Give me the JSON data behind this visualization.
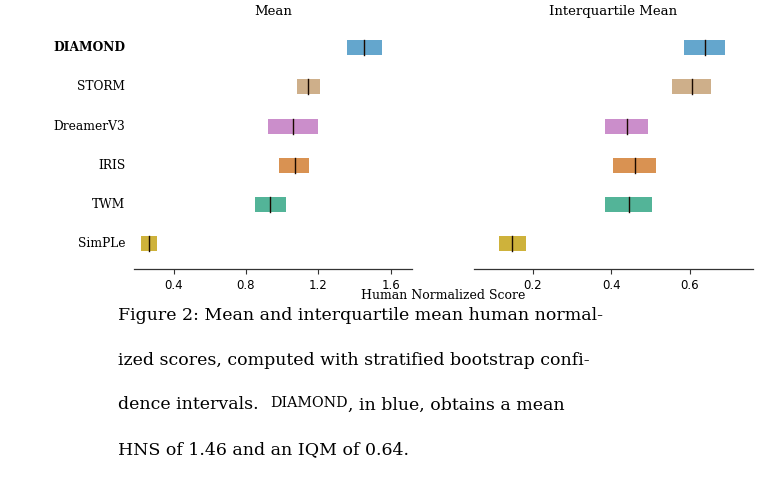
{
  "title_left": "Mean",
  "title_right": "Interquartile Mean",
  "xlabel": "Human Normalized Score",
  "methods": [
    "DIAMOND",
    "STORM",
    "DreamerV3",
    "IRIS",
    "TWM",
    "SimPLe"
  ],
  "bold_method": "DIAMOND",
  "colors": {
    "DIAMOND": "#4e9ac7",
    "STORM": "#c8a47a",
    "DreamerV3": "#c47fc4",
    "IRIS": "#d4833a",
    "TWM": "#3baa8a",
    "SimPLe": "#c8a820"
  },
  "mean": {
    "DIAMOND": {
      "lo": 1.36,
      "median": 1.455,
      "hi": 1.55
    },
    "STORM": {
      "lo": 1.08,
      "median": 1.145,
      "hi": 1.21
    },
    "DreamerV3": {
      "lo": 0.92,
      "median": 1.06,
      "hi": 1.2
    },
    "IRIS": {
      "lo": 0.98,
      "median": 1.07,
      "hi": 1.15
    },
    "TWM": {
      "lo": 0.85,
      "median": 0.935,
      "hi": 1.02
    },
    "SimPLe": {
      "lo": 0.22,
      "median": 0.265,
      "hi": 0.31
    }
  },
  "iqm": {
    "DIAMOND": {
      "lo": 0.585,
      "median": 0.638,
      "hi": 0.69
    },
    "STORM": {
      "lo": 0.555,
      "median": 0.605,
      "hi": 0.655
    },
    "DreamerV3": {
      "lo": 0.385,
      "median": 0.44,
      "hi": 0.495
    },
    "IRIS": {
      "lo": 0.405,
      "median": 0.46,
      "hi": 0.515
    },
    "TWM": {
      "lo": 0.385,
      "median": 0.445,
      "hi": 0.505
    },
    "SimPLe": {
      "lo": 0.115,
      "median": 0.148,
      "hi": 0.182
    }
  },
  "mean_xlim": [
    0.18,
    1.72
  ],
  "iqm_xlim": [
    0.05,
    0.76
  ],
  "mean_xticks": [
    0.4,
    0.8,
    1.2,
    1.6
  ],
  "iqm_xticks": [
    0.2,
    0.4,
    0.6
  ],
  "bar_height": 0.38,
  "background_color": "#ffffff",
  "caption_prefix": "Figure 2: Mean and interquartile mean human normalized scores, computed with stratified bootstrap confidence intervals. ",
  "caption_diamond": "Diamond",
  "caption_suffix": ", in blue, obtains a mean HNS of 1.46 and an IQM of 0.64."
}
